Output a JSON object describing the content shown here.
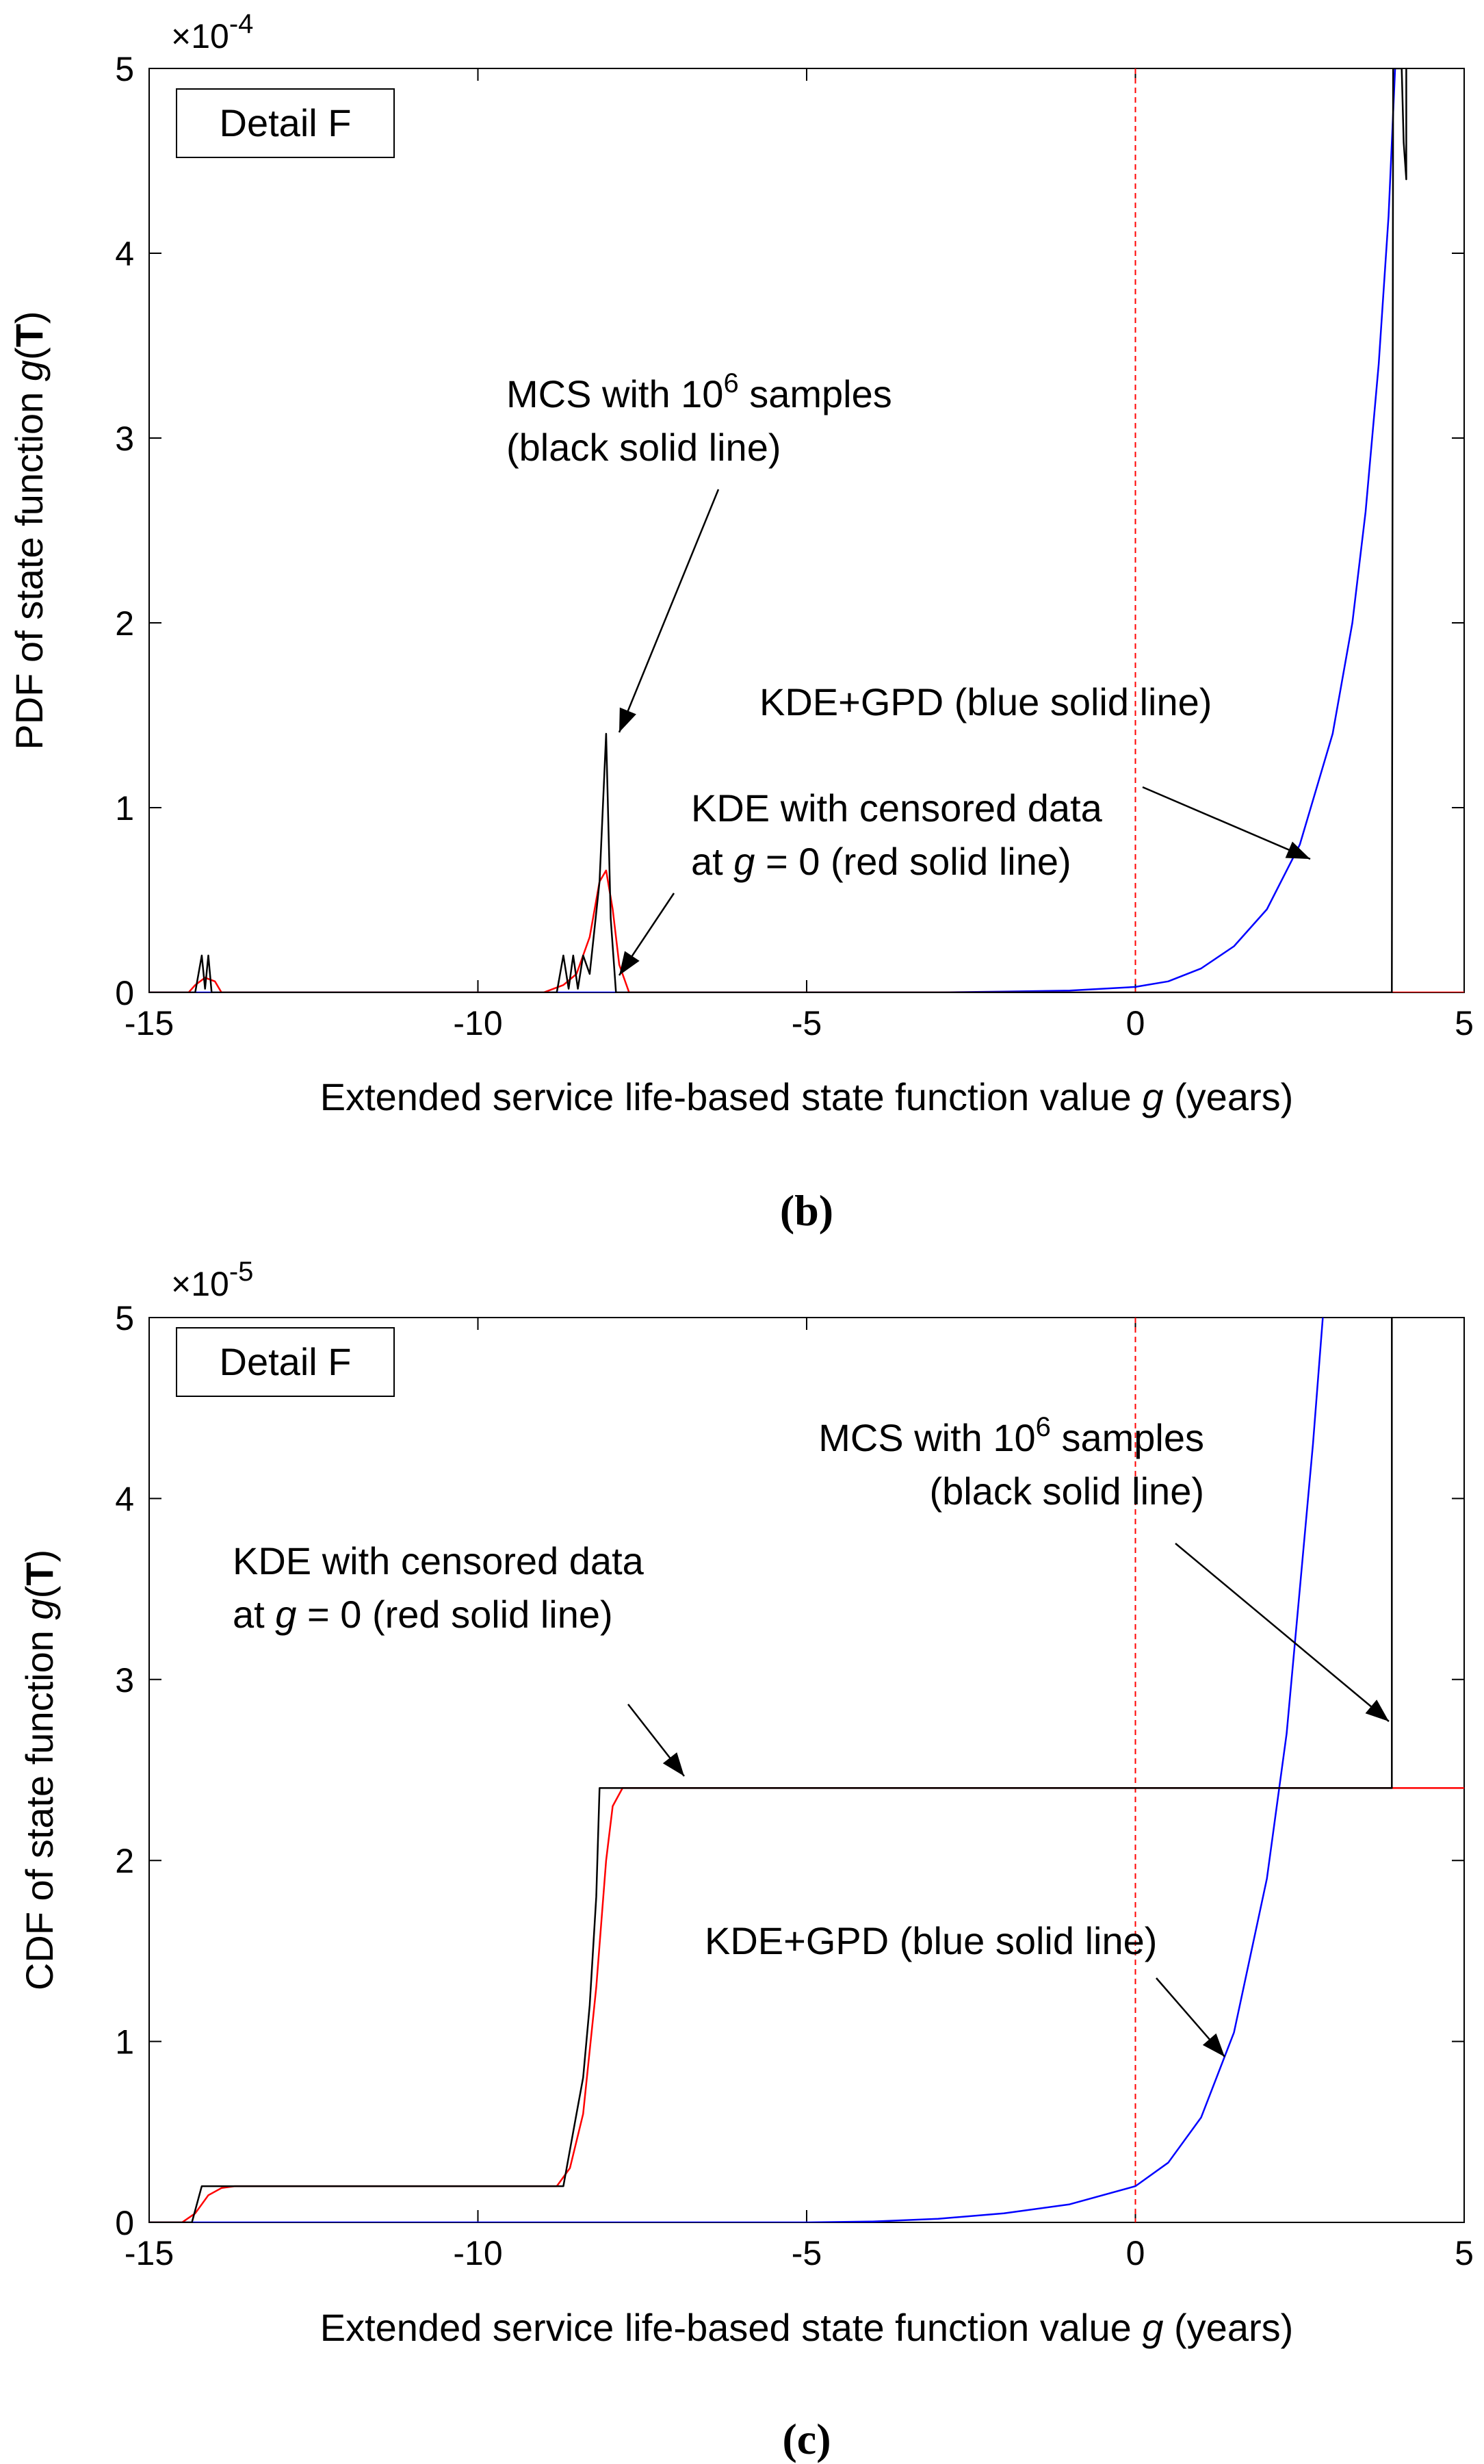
{
  "chart_data": [
    {
      "id": "b",
      "type": "line",
      "caption": "b",
      "xlabel": "Extended service life-based state function value g (years)",
      "ylabel": "PDF of state function g(T)",
      "xlim": [
        -15,
        5
      ],
      "ylim": [
        0,
        5
      ],
      "x_ticks": [
        "-15",
        "-10",
        "-5",
        "0",
        "5"
      ],
      "y_ticks": [
        "0",
        "1",
        "2",
        "3",
        "4",
        "5"
      ],
      "multiplier": {
        "base": "×10",
        "exp": "-4"
      },
      "legend_box": "Detail F",
      "reference_line": {
        "x": 0,
        "color": "#ff0000",
        "style": "dashed"
      },
      "series": [
        {
          "name": "MCS with 10^6 samples",
          "color": "#000000",
          "points": [
            [
              -15,
              0
            ],
            [
              -14.3,
              0
            ],
            [
              -14.2,
              0.2
            ],
            [
              -14.15,
              0.02
            ],
            [
              -14.1,
              0.2
            ],
            [
              -14.05,
              0
            ],
            [
              -13.5,
              0
            ],
            [
              -8.8,
              0
            ],
            [
              -8.7,
              0.2
            ],
            [
              -8.62,
              0.02
            ],
            [
              -8.55,
              0.2
            ],
            [
              -8.48,
              0.02
            ],
            [
              -8.4,
              0.2
            ],
            [
              -8.3,
              0.1
            ],
            [
              -8.15,
              0.6
            ],
            [
              -8.05,
              1.4
            ],
            [
              -7.98,
              0.4
            ],
            [
              -7.9,
              0
            ],
            [
              3.9,
              0
            ],
            [
              3.92,
              5
            ],
            [
              4.05,
              5
            ],
            [
              4.08,
              4.6
            ],
            [
              4.12,
              4.4
            ],
            [
              4.12,
              5
            ]
          ]
        },
        {
          "name": "KDE with censored data",
          "color": "#ff0000",
          "points": [
            [
              -15,
              0
            ],
            [
              -14.4,
              0
            ],
            [
              -14.3,
              0.04
            ],
            [
              -14.15,
              0.08
            ],
            [
              -14.0,
              0.06
            ],
            [
              -13.9,
              0
            ],
            [
              -9.0,
              0
            ],
            [
              -8.7,
              0.04
            ],
            [
              -8.5,
              0.1
            ],
            [
              -8.3,
              0.3
            ],
            [
              -8.15,
              0.6
            ],
            [
              -8.05,
              0.66
            ],
            [
              -7.95,
              0.45
            ],
            [
              -7.85,
              0.15
            ],
            [
              -7.7,
              0
            ],
            [
              5,
              0
            ]
          ]
        },
        {
          "name": "KDE+GPD",
          "color": "#0000ff",
          "points": [
            [
              -15,
              0
            ],
            [
              -3,
              0
            ],
            [
              -2,
              0.005
            ],
            [
              -1,
              0.01
            ],
            [
              0,
              0.03
            ],
            [
              0.5,
              0.06
            ],
            [
              1,
              0.13
            ],
            [
              1.5,
              0.25
            ],
            [
              2,
              0.45
            ],
            [
              2.5,
              0.8
            ],
            [
              3,
              1.4
            ],
            [
              3.3,
              2.0
            ],
            [
              3.5,
              2.6
            ],
            [
              3.7,
              3.4
            ],
            [
              3.85,
              4.2
            ],
            [
              3.95,
              5
            ]
          ]
        }
      ],
      "annotations": [
        {
          "lines": [
            [
              "MCS with 10",
              "6",
              " samples"
            ],
            [
              "(black solid line)"
            ]
          ]
        },
        {
          "lines": [
            [
              "KDE+GPD (blue solid line)"
            ]
          ]
        },
        {
          "lines": [
            [
              "KDE with censored data"
            ],
            [
              "at ",
              "g",
              " = 0 (red solid line)"
            ]
          ]
        }
      ]
    },
    {
      "id": "c",
      "type": "line",
      "caption": "c",
      "xlabel": "Extended service life-based state function value g (years)",
      "ylabel": "CDF of state function g(T)",
      "xlim": [
        -15,
        5
      ],
      "ylim": [
        0,
        5
      ],
      "x_ticks": [
        "-15",
        "-10",
        "-5",
        "0",
        "5"
      ],
      "y_ticks": [
        "0",
        "1",
        "2",
        "3",
        "4",
        "5"
      ],
      "multiplier": {
        "base": "×10",
        "exp": "-5"
      },
      "legend_box": "Detail F",
      "reference_line": {
        "x": 0,
        "color": "#ff0000",
        "style": "dashed"
      },
      "series": [
        {
          "name": "MCS with 10^6 samples",
          "color": "#000000",
          "points": [
            [
              -15,
              0
            ],
            [
              -14.35,
              0
            ],
            [
              -14.2,
              0.2
            ],
            [
              -8.7,
              0.2
            ],
            [
              -8.6,
              0.4
            ],
            [
              -8.5,
              0.6
            ],
            [
              -8.4,
              0.8
            ],
            [
              -8.3,
              1.2
            ],
            [
              -8.2,
              1.8
            ],
            [
              -8.15,
              2.4
            ],
            [
              3.9,
              2.4
            ],
            [
              3.9,
              5
            ]
          ]
        },
        {
          "name": "KDE with censored data",
          "color": "#ff0000",
          "points": [
            [
              -15,
              0
            ],
            [
              -14.5,
              0
            ],
            [
              -14.3,
              0.05
            ],
            [
              -14.1,
              0.15
            ],
            [
              -13.9,
              0.19
            ],
            [
              -13.7,
              0.2
            ],
            [
              -8.8,
              0.2
            ],
            [
              -8.6,
              0.3
            ],
            [
              -8.4,
              0.6
            ],
            [
              -8.2,
              1.3
            ],
            [
              -8.05,
              2.0
            ],
            [
              -7.95,
              2.3
            ],
            [
              -7.8,
              2.4
            ],
            [
              5,
              2.4
            ]
          ]
        },
        {
          "name": "KDE+GPD",
          "color": "#0000ff",
          "points": [
            [
              -15,
              0
            ],
            [
              -5,
              0
            ],
            [
              -4,
              0.005
            ],
            [
              -3,
              0.02
            ],
            [
              -2,
              0.05
            ],
            [
              -1,
              0.1
            ],
            [
              0,
              0.2
            ],
            [
              0.5,
              0.33
            ],
            [
              1,
              0.58
            ],
            [
              1.5,
              1.05
            ],
            [
              2,
              1.9
            ],
            [
              2.3,
              2.7
            ],
            [
              2.5,
              3.5
            ],
            [
              2.7,
              4.3
            ],
            [
              2.85,
              5
            ]
          ]
        }
      ],
      "annotations": [
        {
          "lines": [
            [
              "MCS with 10",
              "6",
              " samples"
            ],
            [
              "(black solid line)"
            ]
          ]
        },
        {
          "lines": [
            [
              "KDE with censored data"
            ],
            [
              "at ",
              "g",
              " = 0 (red solid line)"
            ]
          ]
        },
        {
          "lines": [
            [
              "KDE+GPD (blue solid line)"
            ]
          ]
        }
      ]
    }
  ]
}
